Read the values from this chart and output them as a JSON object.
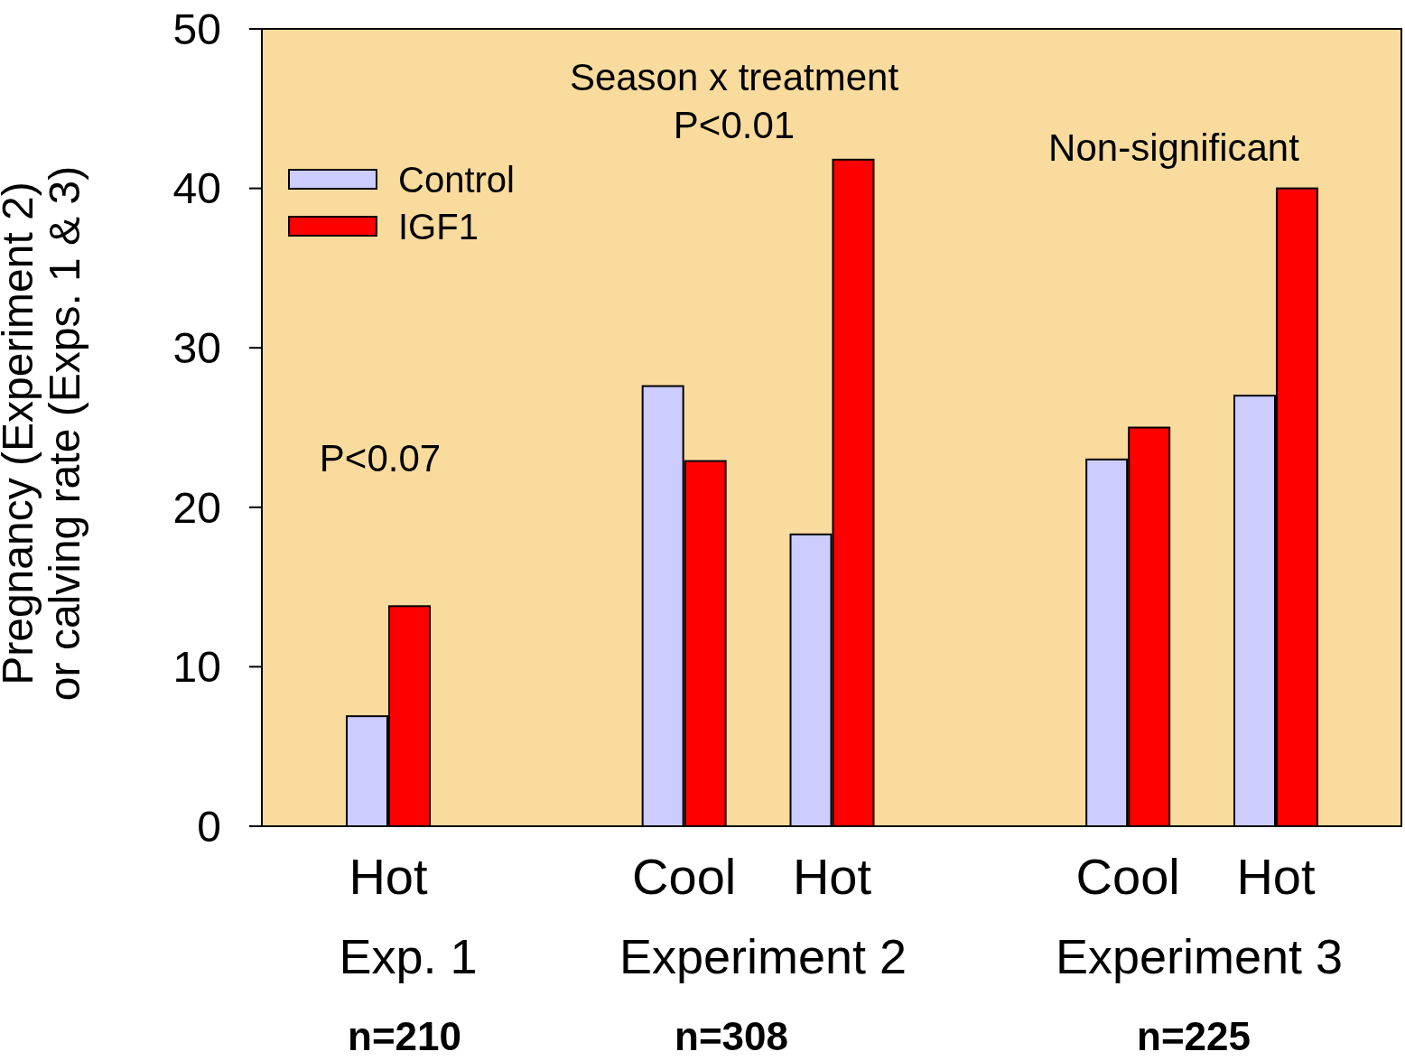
{
  "chart_data": {
    "type": "bar",
    "ylabel": "Pregnancy (Experiment 2)\nor calving rate (Exps. 1 & 3)",
    "categories": [
      "Hot",
      null,
      "Cool",
      "Hot",
      null,
      "Cool",
      "Hot"
    ],
    "series": [
      {
        "name": "Control",
        "color": "#ccccff",
        "values": [
          6.9,
          null,
          27.6,
          18.3,
          null,
          23.0,
          27.0
        ]
      },
      {
        "name": "IGF1",
        "color": "#ff0000",
        "values": [
          13.8,
          null,
          22.9,
          41.8,
          null,
          25.0,
          40.0
        ]
      }
    ],
    "ylim": [
      0,
      50
    ],
    "yticks": [
      0,
      10,
      20,
      30,
      40,
      50
    ],
    "grid": false,
    "legend": "top left",
    "annotations": [
      "Season x treatment\nP<0.01",
      "Non-significant",
      "P<0.07",
      "Exp. 1",
      "Experiment 2",
      "Experiment 3",
      "n=210",
      "n=308",
      "n=225"
    ]
  }
}
